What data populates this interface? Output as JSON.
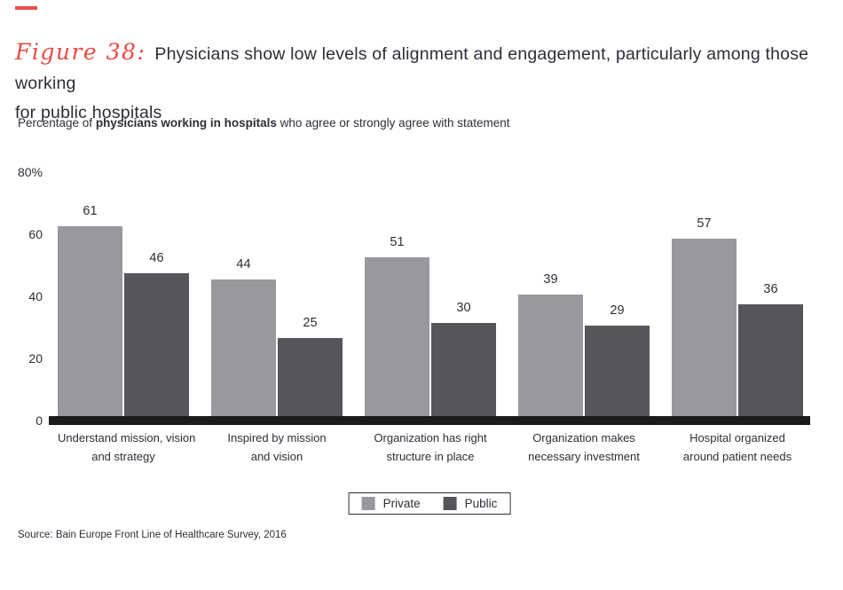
{
  "figure": {
    "label": "Figure 38:",
    "title_line1": "Physicians show low levels of alignment and engagement, particularly among those working",
    "title_line2": "for public hospitals"
  },
  "subtitle": {
    "prefix": "Percentage of ",
    "bold": "physicians working in hospitals",
    "suffix": " who agree or strongly agree with statement"
  },
  "chart_data": {
    "type": "bar",
    "title": "Physicians show low levels of alignment and engagement, particularly among those working for public hospitals",
    "ylabel": "Percentage of physicians working in hospitals who agree or strongly agree with statement",
    "xlabel": "",
    "ylim": [
      0,
      80
    ],
    "grid": false,
    "legend_position": "bottom-center",
    "bar_value_labels": true,
    "y_ticks": [
      {
        "label": "80%",
        "value": 80
      },
      {
        "label": "60",
        "value": 60
      },
      {
        "label": "40",
        "value": 40
      },
      {
        "label": "20",
        "value": 20
      },
      {
        "label": "0",
        "value": 0
      }
    ],
    "categories": [
      "Understand mission, vision and strategy",
      "Inspired by mission and vision",
      "Organization has right structure in place",
      "Organization makes necessary investment",
      "Hospital organized around patient needs"
    ],
    "category_lines": [
      [
        "Understand mission, vision",
        "and strategy"
      ],
      [
        "Inspired by mission",
        "and vision"
      ],
      [
        "Organization has right",
        "structure in place"
      ],
      [
        "Organization makes",
        "necessary investment"
      ],
      [
        "Hospital organized",
        "around patient needs"
      ]
    ],
    "series": [
      {
        "name": "Private",
        "color": "#97999d",
        "values": [
          61,
          44,
          51,
          39,
          57
        ]
      },
      {
        "name": "Public",
        "color": "#55565a",
        "values": [
          46,
          25,
          30,
          29,
          36
        ]
      }
    ]
  },
  "source": "Source: Bain Europe Front Line of Healthcare Survey, 2016",
  "colors": {
    "accent_red": "#ec4a44",
    "text": "#2d2d38",
    "private_bar": "#97999d",
    "public_bar": "#55565a",
    "baseline": "#1b1b1b"
  }
}
